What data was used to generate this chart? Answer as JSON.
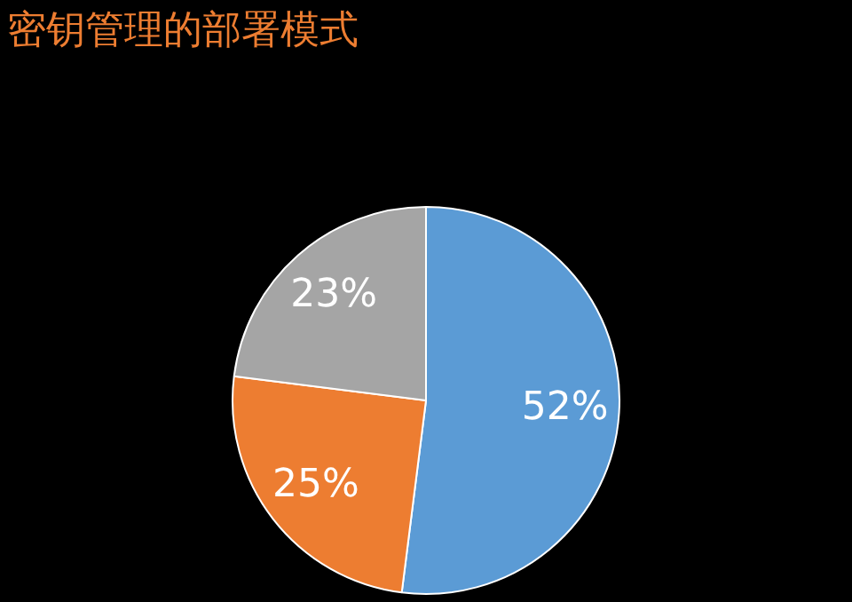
{
  "chart_data": {
    "type": "pie",
    "title": "密钥管理的部署模式",
    "categories": [
      null,
      null,
      null
    ],
    "values": [
      52,
      25,
      23
    ],
    "colors": [
      "#5b9bd5",
      "#ed7d31",
      "#a5a5a5"
    ],
    "value_labels": [
      "52%",
      "25%",
      "23%"
    ],
    "legend": false
  }
}
